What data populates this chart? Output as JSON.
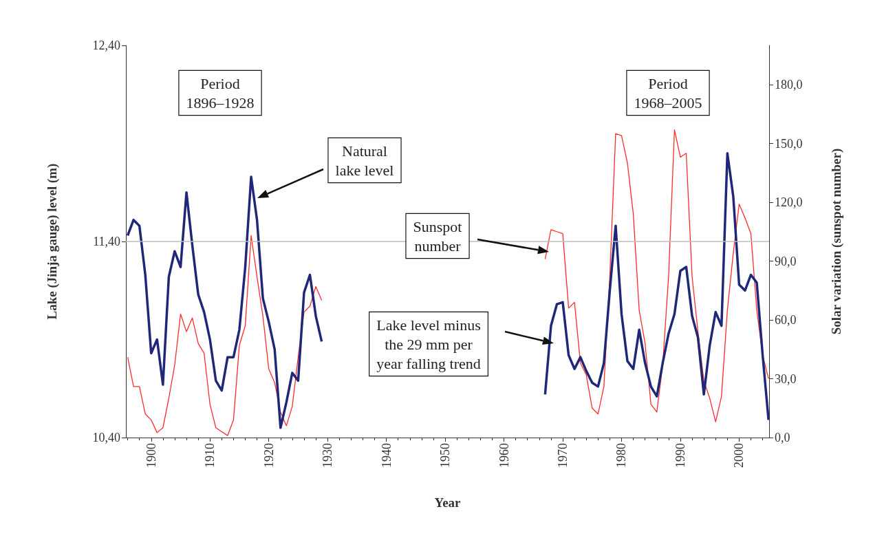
{
  "chart_data": {
    "type": "line",
    "xlabel": "Year",
    "ylabel": "Lake (Jinja gauge) level (m)",
    "y2label": "Solar variation (sunspot number)",
    "marker": "none",
    "xlim": [
      1895.7,
      2005.1
    ],
    "xticks": [
      1900,
      1910,
      1920,
      1930,
      1940,
      1950,
      1960,
      1970,
      1980,
      1990,
      2000
    ],
    "ylim": [
      10.4,
      12.4
    ],
    "yticks": [
      {
        "value": 10.4,
        "label": "10,40"
      },
      {
        "value": 11.4,
        "label": "11,40"
      },
      {
        "value": 12.4,
        "label": "12,40"
      }
    ],
    "y2lim": [
      0,
      200
    ],
    "y2ticks": [
      {
        "value": 0,
        "label": "0,0"
      },
      {
        "value": 30,
        "label": "30,0"
      },
      {
        "value": 60,
        "label": "60,0"
      },
      {
        "value": 90,
        "label": "90,0"
      },
      {
        "value": 120,
        "label": "120,0"
      },
      {
        "value": 150,
        "label": "150,0"
      },
      {
        "value": 180,
        "label": "180,0"
      }
    ],
    "ref_lines": [
      {
        "axis": "y",
        "value": 11.4,
        "color": "#bdbdbd"
      }
    ],
    "annotations": [
      "Period\n1896–1928",
      "Period\n1968–2005",
      "Natural\nlake level",
      "Sunspot\nnumber",
      "Lake level minus\nthe 29 mm per\nyear falling trend"
    ],
    "series": [
      {
        "color": "#1f2878",
        "x": [
          1896,
          1897,
          1898,
          1899,
          1900,
          1901,
          1902,
          1903,
          1904,
          1905,
          1906,
          1907,
          1908,
          1909,
          1910,
          1911,
          1912,
          1913,
          1914,
          1915,
          1916,
          1917,
          1918,
          1919,
          1920,
          1921,
          1922,
          1923,
          1924,
          1925,
          1926,
          1927,
          1928,
          1929
        ],
        "values": [
          11.43,
          11.51,
          11.48,
          11.23,
          10.83,
          10.9,
          10.67,
          11.22,
          11.35,
          11.27,
          11.65,
          11.38,
          11.13,
          11.04,
          10.9,
          10.69,
          10.64,
          10.81,
          10.81,
          10.95,
          11.27,
          11.73,
          11.51,
          11.11,
          10.99,
          10.85,
          10.45,
          10.58,
          10.73,
          10.69,
          11.14,
          11.23,
          11.02,
          10.89
        ]
      },
      {
        "color": "#1f2878",
        "x": [
          1967,
          1968,
          1969,
          1970,
          1971,
          1972,
          1973,
          1974,
          1975,
          1976,
          1977,
          1978,
          1979,
          1980,
          1981,
          1982,
          1983,
          1984,
          1985,
          1986,
          1987,
          1988,
          1989,
          1990,
          1991,
          1992,
          1993,
          1994,
          1995,
          1996,
          1997,
          1998,
          1999,
          2000,
          2001,
          2002,
          2003,
          2004,
          2005
        ],
        "values": [
          10.62,
          10.97,
          11.08,
          11.09,
          10.82,
          10.75,
          10.81,
          10.74,
          10.68,
          10.66,
          10.78,
          11.15,
          11.48,
          11.03,
          10.79,
          10.75,
          10.95,
          10.78,
          10.66,
          10.61,
          10.78,
          10.93,
          11.03,
          11.25,
          11.27,
          11.02,
          10.91,
          10.62,
          10.87,
          11.04,
          10.97,
          11.85,
          11.63,
          11.18,
          11.15,
          11.23,
          11.19,
          10.82,
          10.49
        ]
      },
      {
        "color": "#ff2a2a",
        "axis": "y2",
        "x": [
          1896,
          1897,
          1898,
          1899,
          1900,
          1901,
          1902,
          1903,
          1904,
          1905,
          1906,
          1907,
          1908,
          1909,
          1910,
          1911,
          1912,
          1913,
          1914,
          1915,
          1916,
          1917,
          1918,
          1919,
          1920,
          1921,
          1922,
          1923,
          1924,
          1925,
          1926,
          1927,
          1928,
          1929
        ],
        "values": [
          41,
          26,
          26,
          12,
          9,
          2.5,
          5,
          20,
          37,
          63,
          54,
          61,
          48,
          43,
          17,
          5,
          3,
          1,
          9,
          47,
          57,
          103,
          82,
          62,
          35,
          28,
          13,
          6,
          16,
          41,
          64,
          67,
          77,
          70
        ]
      },
      {
        "color": "#ff2a2a",
        "axis": "y2",
        "x": [
          1967,
          1968,
          1969,
          1970,
          1971,
          1972,
          1973,
          1974,
          1975,
          1976,
          1977,
          1978,
          1979,
          1980,
          1981,
          1982,
          1983,
          1984,
          1985,
          1986,
          1987,
          1988,
          1989,
          1990,
          1991,
          1992,
          1993,
          1994,
          1995,
          1996,
          1997,
          1998,
          1999,
          2000,
          2001,
          2002,
          2003,
          2004,
          2005
        ],
        "values": [
          91,
          106,
          105,
          104,
          66,
          69,
          38,
          32,
          15,
          12,
          26,
          82,
          155,
          154,
          140,
          114,
          65,
          48,
          17,
          13,
          37,
          82,
          157,
          143,
          145,
          82,
          54,
          29,
          20,
          8,
          21,
          65,
          94,
          119,
          112,
          104,
          65,
          42,
          30
        ]
      }
    ]
  }
}
